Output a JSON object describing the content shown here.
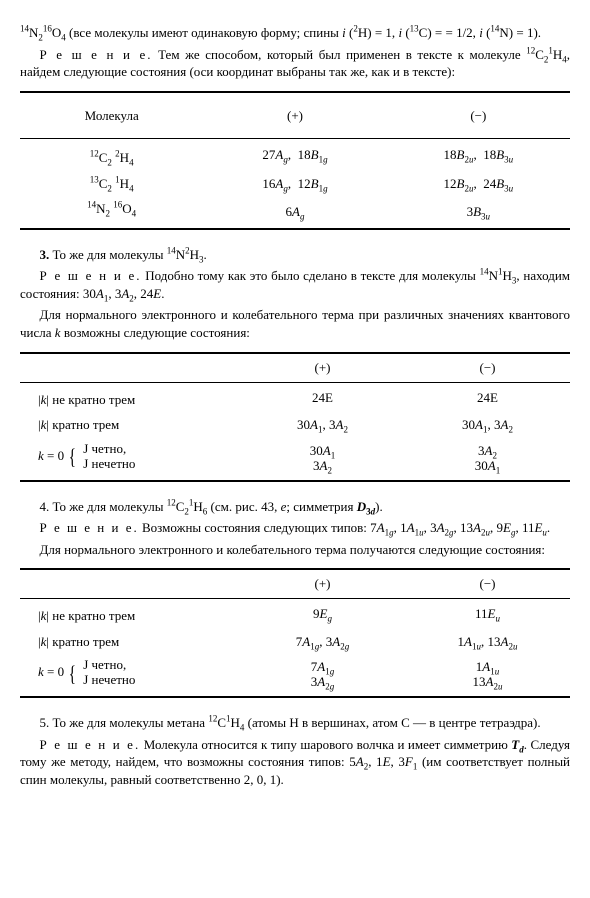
{
  "intro": {
    "line1_html": "<sup>14</sup>N<sub>2</sub><sup>16</sup>O<sub>4</sub> (все молекулы имеют одинаковую форму; спины <i>i</i> (<sup>2</sup>H) = 1, <i>i</i> (<sup>13</sup>C) = = 1/2, <i>i</i> (<sup>14</sup>N) = 1).",
    "solution_label": "Р е ш е н и е.",
    "solution_html": "Тем же способом, который был применен в тексте к молекуле <sup>12</sup>C<sub>2</sub><sup>1</sup>H<sub>4</sub>, найдем следующие состояния (оси координат выбраны так же, как и в тексте):"
  },
  "table1": {
    "h1": "Молекула",
    "h2": "(+)",
    "h3": "(−)",
    "r1c1_html": "<sup>12</sup>C<sub>2</sub> <sup>2</sup>H<sub>4</sub>",
    "r1c2_html": "27<i>A<sub>g</sub></i>,&nbsp;&nbsp;18<i>B</i><sub>1<i>g</i></sub>",
    "r1c3_html": "18<i>B</i><sub>2<i>u</i></sub>,&nbsp;&nbsp;18<i>B</i><sub>3<i>u</i></sub>",
    "r2c1_html": "<sup>13</sup>C<sub>2</sub> <sup>1</sup>H<sub>4</sub>",
    "r2c2_html": "16<i>A<sub>g</sub></i>,&nbsp;&nbsp;12<i>B</i><sub>1<i>g</i></sub>",
    "r2c3_html": "12<i>B</i><sub>2<i>u</i></sub>,&nbsp;&nbsp;24<i>B</i><sub>3<i>u</i></sub>",
    "r3c1_html": "<sup>14</sup>N<sub>2</sub> <sup>16</sup>O<sub>4</sub>",
    "r3c2_html": "6<i>A<sub>g</sub></i>",
    "r3c3_html": "3<i>B</i><sub>3<i>u</i></sub>"
  },
  "sec3": {
    "title_html": "<b>3.</b> То же для молекулы <sup>14</sup>N<sup>2</sup>H<sub>3</sub>.",
    "sol_label": "Р е ш е н и е.",
    "sol_html": "Подобно тому как это было сделано в тексте для молекулы <sup>14</sup>N<sup>1</sup>H<sub>3</sub>, находим состояния: 30<i>A</i><sub>1</sub>, 3<i>A</i><sub>2</sub>, 24<i>E</i>.",
    "para_html": "Для нормального электронного и колебательного терма при различных значениях квантового числа <i>k</i> возможны следующие состояния:"
  },
  "table2": {
    "h2": "(+)",
    "h3": "(−)",
    "r1c1_html": "|<i>k</i>| не кратно трем",
    "r1c2": "24E",
    "r1c3": "24E",
    "r2c1_html": "|<i>k</i>| кратно трем",
    "r2c2_html": "30<i>A</i><sub>1</sub>, 3<i>A</i><sub>2</sub>",
    "r2c3_html": "30<i>A</i><sub>1</sub>, 3<i>A</i><sub>2</sub>",
    "r3c1_html": "<i>k</i> = 0",
    "r3c1_top": "J четно,",
    "r3c1_bot": "J нечетно",
    "r3c2_top_html": "30<i>A</i><sub>1</sub>",
    "r3c2_bot_html": "3<i>A</i><sub>2</sub>",
    "r3c3_top_html": "3<i>A</i><sub>2</sub>",
    "r3c3_bot_html": "30<i>A</i><sub>1</sub>"
  },
  "sec4": {
    "title_html": "4. То же для молекулы <sup>12</sup>C<sub>2</sub><sup>1</sup>H<sub>6</sub> (см. рис. 43, <i>е</i>; симметрия <b><i>D</i><sub>3<i>d</i></sub></b>).",
    "sol_label": "Р е ш е н и е.",
    "sol_html": "Возможны состояния следующих типов: 7<i>A</i><sub>1<i>g</i></sub>, 1<i>A</i><sub>1<i>u</i></sub>, 3<i>A</i><sub>2<i>g</i></sub>, 13<i>A</i><sub>2<i>u</i></sub>, 9<i>E</i><sub><i>g</i></sub>, 11<i>E</i><sub><i>u</i></sub>.",
    "para_html": "Для нормального электронного и колебательного терма получаются следующие состояния:"
  },
  "table3": {
    "h2": "(+)",
    "h3": "(−)",
    "r1c1_html": "|<i>k</i>| не кратно трем",
    "r1c2_html": "9<i>E</i><sub><i>g</i></sub>",
    "r1c3_html": "11<i>E</i><sub><i>u</i></sub>",
    "r2c1_html": "|<i>k</i>| кратно трем",
    "r2c2_html": "7<i>A</i><sub>1<i>g</i></sub>, 3<i>A</i><sub>2<i>g</i></sub>",
    "r2c3_html": "1<i>A</i><sub>1<i>u</i></sub>, 13<i>A</i><sub>2<i>u</i></sub>",
    "r3c1_html": "<i>k</i> = 0",
    "r3c1_top": "J четно,",
    "r3c1_bot": "J нечетно",
    "r3c2_top_html": "7<i>A</i><sub>1<i>g</i></sub>",
    "r3c2_bot_html": "3<i>A</i><sub>2<i>g</i></sub>",
    "r3c3_top_html": "1<i>A</i><sub>1<i>u</i></sub>",
    "r3c3_bot_html": "13<i>A</i><sub>2<i>u</i></sub>"
  },
  "sec5": {
    "title_html": "5. То же для молекулы метана <sup>12</sup>C<sup>1</sup>H<sub>4</sub> (атомы H в вершинах, атом C — в центре тетраэдра).",
    "sol_label": "Р е ш е н и е.",
    "sol_html": "Молекула относится к типу шарового волчка и имеет симметрию <b><i>T</i><sub><i>d</i></sub></b>. Следуя тому же методу, найдем, что возможны состояния типов: 5<i>A</i><sub>2</sub>, 1<i>E</i>, 3<i>F</i><sub>1</sub> (им соответствует полный спин молекулы, равный соответственно 2, 0, 1)."
  }
}
